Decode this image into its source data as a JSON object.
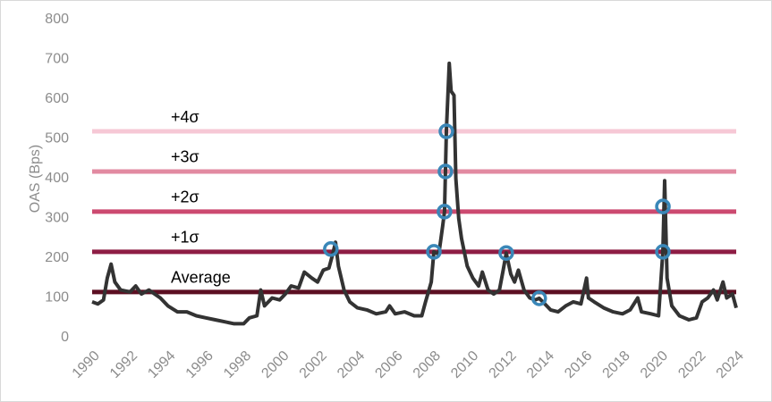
{
  "chart_data": {
    "type": "line",
    "y_label": "OAS (Bps)",
    "xlim": [
      1990,
      2024
    ],
    "xticks": [
      1990,
      1992,
      1994,
      1996,
      1998,
      2000,
      2002,
      2004,
      2006,
      2008,
      2010,
      2012,
      2014,
      2016,
      2018,
      2020,
      2022,
      2024
    ],
    "ylim": [
      0,
      800
    ],
    "yticks": [
      0,
      100,
      200,
      300,
      400,
      500,
      600,
      700,
      800
    ],
    "reference_lines": [
      {
        "label": "Average",
        "value": 115,
        "color": "#5c0f22"
      },
      {
        "label": "+1σ",
        "value": 216,
        "color": "#8e1d45"
      },
      {
        "label": "+2σ",
        "value": 317,
        "color": "#cc4a70"
      },
      {
        "label": "+3σ",
        "value": 418,
        "color": "#e28aa1"
      },
      {
        "label": "+4σ",
        "value": 519,
        "color": "#f6c8d5"
      }
    ],
    "series": [
      {
        "color": "#333333",
        "x": [
          1990.0,
          1990.3,
          1990.6,
          1990.8,
          1991.0,
          1991.2,
          1991.5,
          1992.0,
          1992.3,
          1992.6,
          1993.0,
          1993.3,
          1993.6,
          1994.0,
          1994.5,
          1995.0,
          1995.5,
          1996.0,
          1996.5,
          1997.0,
          1997.5,
          1998.0,
          1998.3,
          1998.7,
          1998.9,
          1999.1,
          1999.5,
          1999.9,
          2000.2,
          2000.5,
          2000.9,
          2001.2,
          2001.6,
          2001.9,
          2002.2,
          2002.5,
          2002.7,
          2002.85,
          2003.0,
          2003.3,
          2003.6,
          2004.0,
          2004.5,
          2005.0,
          2005.5,
          2005.7,
          2006.0,
          2006.5,
          2007.0,
          2007.4,
          2007.6,
          2007.9,
          2008.04,
          2008.3,
          2008.5,
          2008.6,
          2008.7,
          2008.85,
          2008.95,
          2009.1,
          2009.2,
          2009.35,
          2009.5,
          2009.8,
          2010.1,
          2010.4,
          2010.6,
          2010.9,
          2011.2,
          2011.5,
          2011.7,
          2011.86,
          2012.1,
          2012.3,
          2012.5,
          2012.8,
          2013.1,
          2013.4,
          2013.6,
          2013.9,
          2014.2,
          2014.6,
          2015.0,
          2015.4,
          2015.8,
          2016.1,
          2016.2,
          2016.5,
          2017.0,
          2017.5,
          2018.0,
          2018.4,
          2018.8,
          2019.0,
          2019.5,
          2019.9,
          2020.13,
          2020.22,
          2020.35,
          2020.6,
          2021.0,
          2021.5,
          2021.9,
          2022.2,
          2022.5,
          2022.8,
          2023.0,
          2023.3,
          2023.5,
          2023.8,
          2024.0
        ],
        "values": [
          90,
          85,
          95,
          150,
          185,
          140,
          120,
          115,
          130,
          110,
          120,
          110,
          100,
          80,
          65,
          65,
          55,
          50,
          45,
          40,
          35,
          35,
          50,
          55,
          120,
          80,
          100,
          95,
          110,
          130,
          125,
          165,
          150,
          140,
          170,
          175,
          210,
          240,
          180,
          120,
          90,
          75,
          70,
          60,
          65,
          80,
          60,
          65,
          55,
          55,
          90,
          140,
          216,
          210,
          280,
          317,
          520,
          690,
          620,
          610,
          400,
          300,
          250,
          180,
          150,
          130,
          165,
          120,
          110,
          120,
          170,
          213,
          160,
          140,
          170,
          120,
          100,
          95,
          99,
          85,
          70,
          65,
          80,
          90,
          85,
          150,
          100,
          90,
          75,
          65,
          60,
          70,
          100,
          65,
          60,
          55,
          216,
          395,
          150,
          80,
          55,
          45,
          50,
          90,
          100,
          120,
          95,
          140,
          100,
          110,
          75
        ]
      }
    ],
    "markers": {
      "color": "#3a87b8",
      "x": [
        2002.6,
        2008.04,
        2008.6,
        2008.65,
        2008.7,
        2011.86,
        2013.6,
        2020.13,
        2020.13
      ],
      "values": [
        223,
        216,
        317,
        418,
        519,
        213,
        99,
        216,
        330
      ]
    }
  }
}
